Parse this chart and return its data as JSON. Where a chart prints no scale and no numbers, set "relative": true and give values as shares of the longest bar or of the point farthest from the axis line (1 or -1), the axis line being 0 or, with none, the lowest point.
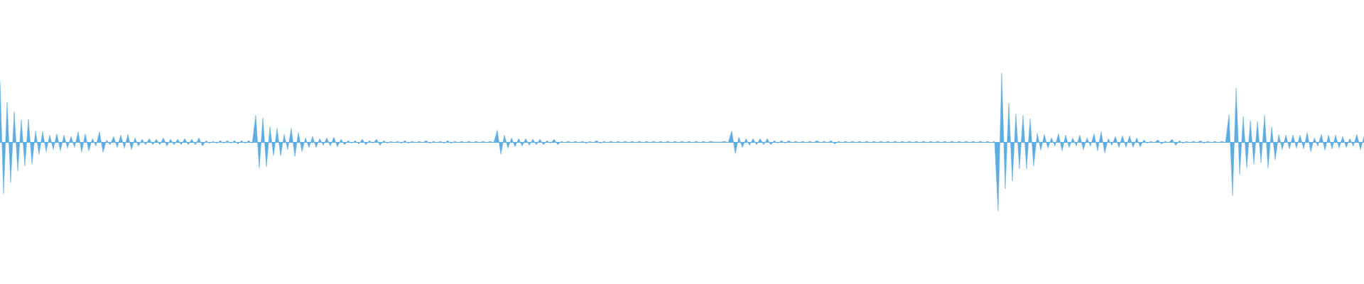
{
  "chart_data": {
    "type": "area",
    "relative": true,
    "categories": [
      null,
      null,
      null,
      null,
      null,
      null,
      null,
      null,
      null,
      null,
      null,
      null,
      null,
      null,
      null,
      null,
      null,
      null,
      null,
      null,
      null,
      null,
      null,
      null,
      null,
      null,
      null,
      null,
      null,
      null,
      null,
      null,
      null,
      null,
      null,
      null,
      null,
      null,
      null,
      null,
      null,
      null,
      null,
      null,
      null,
      null,
      null,
      null,
      null,
      null,
      null,
      null,
      null,
      null,
      null,
      null,
      null,
      null,
      null,
      null,
      null,
      null,
      null,
      null,
      null,
      null,
      null,
      null,
      null,
      null,
      null,
      null,
      null,
      null,
      null,
      null,
      null,
      null,
      null,
      null,
      null,
      null,
      null,
      null,
      null,
      null,
      null,
      null,
      null,
      null,
      null,
      null,
      null,
      null,
      null,
      null,
      null,
      null,
      null,
      null,
      null,
      null,
      null,
      null,
      null,
      null,
      null,
      null,
      null,
      null,
      null,
      null,
      null,
      null,
      null,
      null,
      null,
      null,
      null,
      null,
      null,
      null,
      null,
      null,
      null,
      null,
      null,
      null,
      null,
      null,
      null,
      null,
      null,
      null,
      null,
      null,
      null,
      null,
      null,
      null,
      null,
      null,
      null,
      null,
      null,
      null,
      null,
      null,
      null,
      null,
      null,
      null,
      null,
      null,
      null,
      null,
      null,
      null,
      null,
      null,
      null,
      null,
      null,
      null,
      null,
      null,
      null,
      null,
      null,
      null,
      null,
      null,
      null,
      null,
      null,
      null,
      null,
      null,
      null,
      null,
      null,
      null,
      null,
      null,
      null,
      null,
      null,
      null,
      null,
      null,
      null,
      null,
      null,
      null,
      null,
      null,
      null,
      null,
      null,
      null,
      null,
      null,
      null,
      null,
      null,
      null,
      null,
      null,
      null,
      null,
      null,
      null,
      null,
      null,
      null,
      null,
      null,
      null,
      null,
      null,
      null,
      null,
      null,
      null,
      null,
      null,
      null,
      null,
      null,
      null,
      null,
      null,
      null,
      null,
      null,
      null,
      null,
      null,
      null,
      null,
      null,
      null,
      null,
      null,
      null,
      null,
      null,
      null,
      null,
      null,
      null,
      null,
      null,
      null,
      null,
      null,
      null,
      null,
      null,
      null,
      null,
      null,
      null,
      null,
      null,
      null,
      null,
      null,
      null,
      null,
      null,
      null,
      null,
      null,
      null,
      null,
      null,
      null,
      null,
      null,
      null,
      null,
      null,
      null,
      null,
      null,
      null,
      null,
      null,
      null,
      null,
      null,
      null,
      null,
      null,
      null,
      null,
      null,
      null,
      null,
      null,
      null,
      null,
      null,
      null,
      null,
      null,
      null,
      null,
      null,
      null,
      null,
      null,
      null,
      null,
      null,
      null,
      null,
      null,
      null,
      null,
      null,
      null,
      null,
      null,
      null,
      null,
      null,
      null,
      null,
      null,
      null,
      null,
      null,
      null,
      null,
      null,
      null,
      null,
      null,
      null,
      null,
      null,
      null,
      null,
      null,
      null,
      null,
      null,
      null,
      null,
      null,
      null,
      null,
      null,
      null,
      null,
      null,
      null,
      null,
      null,
      null,
      null,
      null,
      null,
      null,
      null,
      null,
      null,
      null,
      null,
      null,
      null,
      null,
      null,
      null,
      null,
      null,
      null,
      null,
      null,
      null,
      null,
      null,
      null
    ],
    "series": [
      {
        "color": "#5dade2",
        "values": [
          0.89,
          -0.75,
          0.58,
          -0.59,
          0.44,
          -0.42,
          0.32,
          -0.35,
          0.33,
          -0.32,
          0.16,
          -0.18,
          0.15,
          -0.14,
          0.1,
          -0.11,
          0.12,
          -0.13,
          0.1,
          -0.09,
          0.08,
          -0.08,
          0.15,
          -0.15,
          0.12,
          -0.13,
          0.05,
          -0.06,
          0.15,
          -0.15,
          0.03,
          -0.04,
          0.08,
          -0.08,
          0.1,
          -0.09,
          0.11,
          -0.11,
          0.06,
          -0.06,
          0.04,
          -0.04,
          0.05,
          -0.04,
          0.04,
          -0.04,
          0.06,
          -0.06,
          0.04,
          -0.04,
          0.04,
          -0.04,
          0.05,
          -0.04,
          0.04,
          -0.04,
          0.06,
          -0.06,
          0.02,
          -0.02,
          0.01,
          -0.02,
          0.02,
          -0.02,
          0.02,
          -0.02,
          0.02,
          -0.03,
          0.02,
          -0.02,
          0.02,
          -0.02,
          0.39,
          -0.38,
          0.35,
          -0.36,
          0.22,
          -0.2,
          0.2,
          -0.2,
          0.11,
          -0.11,
          0.2,
          -0.21,
          0.14,
          -0.14,
          0.06,
          -0.08,
          0.08,
          -0.08,
          0.05,
          -0.05,
          0.06,
          -0.06,
          0.07,
          -0.07,
          0.04,
          -0.04,
          0.02,
          -0.02,
          0.02,
          -0.03,
          0.04,
          -0.04,
          0.02,
          -0.02,
          0.04,
          -0.05,
          0.02,
          -0.02,
          0.01,
          -0.01,
          0.01,
          -0.02,
          0.02,
          -0.02,
          0.01,
          -0.01,
          0.01,
          -0.01,
          0.02,
          -0.02,
          0.01,
          -0.01,
          0.01,
          -0.02,
          0.02,
          -0.02,
          0.01,
          -0.01,
          0.01,
          -0.01,
          0.01,
          -0.01,
          0.01,
          -0.01,
          0.01,
          -0.01,
          0.01,
          -0.01,
          0.17,
          -0.18,
          0.1,
          -0.09,
          0.06,
          -0.07,
          0.05,
          -0.06,
          0.05,
          -0.05,
          0.04,
          -0.04,
          0.04,
          -0.04,
          0.02,
          -0.02,
          0.04,
          -0.04,
          0.01,
          -0.01,
          0.01,
          -0.01,
          0.01,
          -0.01,
          0.01,
          -0.02,
          0.01,
          -0.01,
          0.02,
          -0.02,
          0.01,
          -0.01,
          0.01,
          -0.01,
          0.01,
          -0.01,
          0.01,
          -0.01,
          0.01,
          -0.01,
          0.01,
          -0.01,
          0.01,
          -0.01,
          0.01,
          -0.01,
          0.01,
          -0.01,
          0.01,
          -0.01,
          0.01,
          -0.01,
          0.01,
          -0.01,
          0.01,
          -0.01,
          0.01,
          -0.01,
          0.01,
          -0.01,
          0.01,
          0,
          0,
          0,
          0.01,
          -0.01,
          0.16,
          -0.17,
          0.07,
          -0.08,
          0.05,
          -0.05,
          0.05,
          -0.04,
          0.05,
          -0.04,
          0.05,
          -0.04,
          0.02,
          -0.02,
          0.02,
          -0.02,
          0.02,
          -0.01,
          0.01,
          -0.01,
          0.01,
          -0.01,
          0.01,
          -0.01,
          0.02,
          -0.01,
          0.01,
          -0.01,
          0.02,
          -0.03,
          0.01,
          -0.01,
          0.01,
          -0.01,
          0.01,
          -0.01,
          0.01,
          -0.01,
          0.01,
          -0.01,
          0.01,
          -0.01,
          0.01,
          -0.01,
          0.01,
          -0.01,
          0.01,
          -0.01,
          0.01,
          -0.01,
          0.01,
          -0.01,
          0.01,
          -0.01,
          0.01,
          -0.01,
          0.01,
          -0.01,
          0.01,
          -0.01,
          0.01,
          -0.01,
          0.01,
          -0.01,
          0.01,
          -0.01,
          0.01,
          -0.01,
          0.01,
          -0.01,
          0.01,
          -0.01,
          0.01,
          -0.01,
          0.01,
          -1,
          1,
          -0.68,
          0.56,
          -0.57,
          0.41,
          -0.39,
          0.39,
          -0.39,
          0.34,
          -0.35,
          0.13,
          -0.12,
          0.11,
          -0.09,
          0.06,
          -0.06,
          0.12,
          -0.13,
          0.1,
          -0.08,
          0.06,
          -0.06,
          0.1,
          -0.11,
          0.06,
          -0.06,
          0.12,
          -0.13,
          0.15,
          -0.16,
          0.05,
          -0.05,
          0.08,
          -0.08,
          0.09,
          -0.08,
          0.09,
          -0.08,
          0.06,
          -0.07,
          0.03,
          -0.02,
          0.01,
          -0.01,
          0.03,
          -0.03,
          0.01,
          -0.01,
          0.04,
          -0.05,
          0.02,
          -0.02,
          0.01,
          -0.01,
          0.01,
          -0.01,
          0.02,
          -0.02,
          0.01,
          -0.01,
          0.01,
          -0.01,
          0.01,
          -0.01,
          0.4,
          -0.78,
          0.78,
          -0.47,
          0.37,
          -0.38,
          0.31,
          -0.32,
          0.3,
          -0.3,
          0.39,
          -0.38,
          0.22,
          -0.26,
          0.11,
          -0.11,
          0.1,
          -0.1,
          0.1,
          -0.09,
          0.1,
          -0.1,
          0.14,
          -0.14,
          0.06,
          -0.06,
          0.11,
          -0.12,
          0.1,
          -0.1,
          0.1,
          -0.09,
          0.08,
          -0.08,
          0.05,
          -0.06,
          0.11,
          -0.11,
          0.08
        ]
      }
    ]
  }
}
